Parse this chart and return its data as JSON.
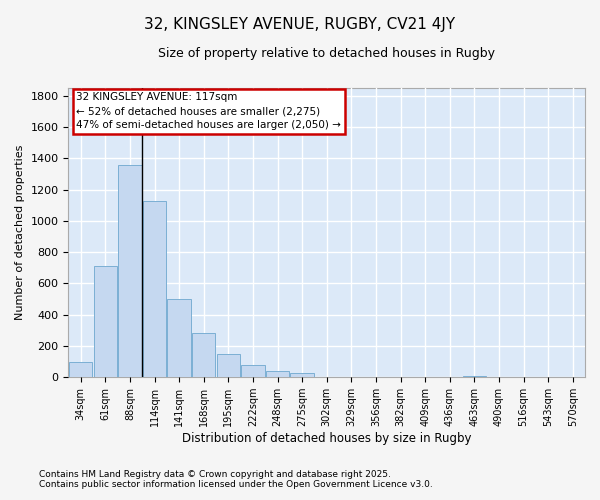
{
  "title": "32, KINGSLEY AVENUE, RUGBY, CV21 4JY",
  "subtitle": "Size of property relative to detached houses in Rugby",
  "xlabel": "Distribution of detached houses by size in Rugby",
  "ylabel": "Number of detached properties",
  "categories": [
    "34sqm",
    "61sqm",
    "88sqm",
    "114sqm",
    "141sqm",
    "168sqm",
    "195sqm",
    "222sqm",
    "248sqm",
    "275sqm",
    "302sqm",
    "329sqm",
    "356sqm",
    "382sqm",
    "409sqm",
    "436sqm",
    "463sqm",
    "490sqm",
    "516sqm",
    "543sqm",
    "570sqm"
  ],
  "values": [
    100,
    710,
    1360,
    1130,
    500,
    280,
    150,
    75,
    40,
    30,
    0,
    0,
    0,
    0,
    0,
    0,
    10,
    0,
    0,
    0,
    0
  ],
  "bar_color": "#c5d8f0",
  "bar_edge_color": "#7bafd4",
  "chart_bg_color": "#dce9f8",
  "fig_bg_color": "#f5f5f5",
  "grid_color": "#ffffff",
  "ylim": [
    0,
    1850
  ],
  "yticks": [
    0,
    200,
    400,
    600,
    800,
    1000,
    1200,
    1400,
    1600,
    1800
  ],
  "vline_x_index": 3,
  "property_label": "32 KINGSLEY AVENUE: 117sqm",
  "annotation_line1": "← 52% of detached houses are smaller (2,275)",
  "annotation_line2": "47% of semi-detached houses are larger (2,050) →",
  "box_edge_color": "#cc0000",
  "footnote1": "Contains HM Land Registry data © Crown copyright and database right 2025.",
  "footnote2": "Contains public sector information licensed under the Open Government Licence v3.0."
}
